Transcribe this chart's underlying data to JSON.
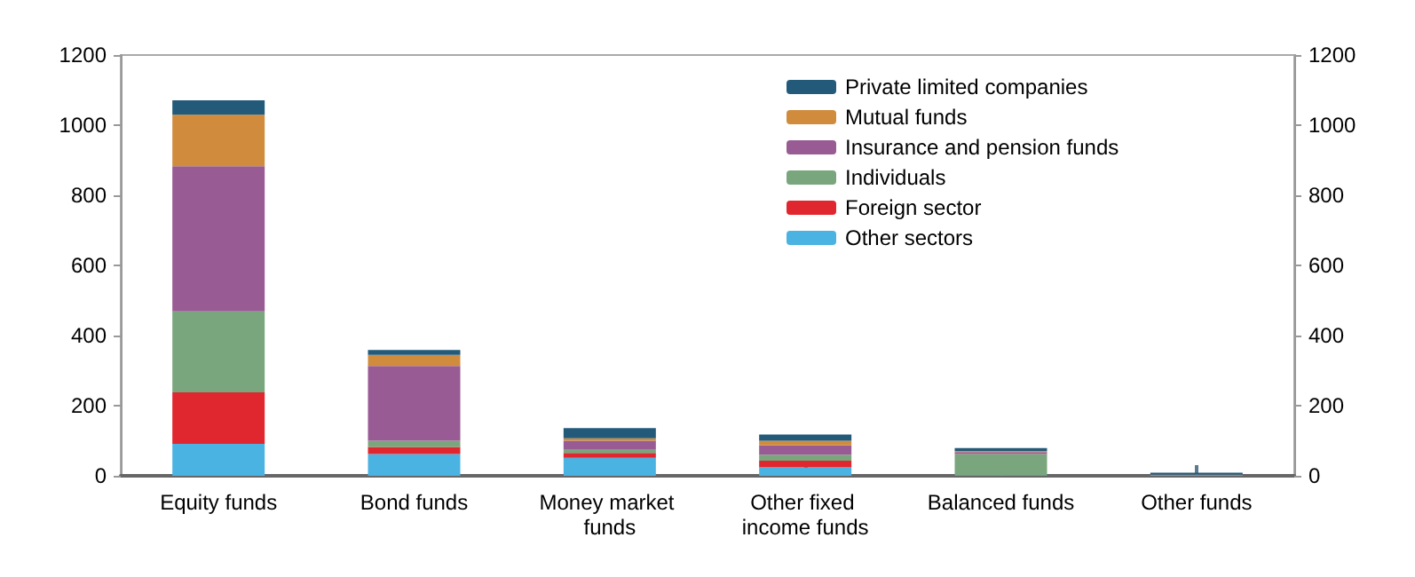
{
  "chart_data": {
    "type": "bar",
    "stacked": true,
    "categories": [
      "Equity funds",
      "Bond funds",
      "Money market funds",
      "Other fixed income funds",
      "Balanced funds",
      "Other funds"
    ],
    "series": [
      {
        "name": "Other sectors",
        "color": "#4bb3e1",
        "values": [
          91,
          62,
          51,
          24,
          2,
          2
        ]
      },
      {
        "name": "Foreign sector",
        "color": "#e0262e",
        "values": [
          147,
          20,
          14,
          19,
          0,
          0
        ]
      },
      {
        "name": "Individuals",
        "color": "#79a67c",
        "values": [
          231,
          18,
          11,
          17,
          60,
          1
        ]
      },
      {
        "name": "Insurance and pension funds",
        "color": "#985b94",
        "values": [
          414,
          213,
          24,
          27,
          6,
          1
        ]
      },
      {
        "name": "Mutual funds",
        "color": "#d08c3c",
        "values": [
          147,
          32,
          7,
          13,
          3,
          0
        ]
      },
      {
        "name": "Private limited companies",
        "color": "#235a7a",
        "values": [
          41,
          14,
          29,
          18,
          8,
          5
        ]
      }
    ],
    "ylim": [
      0,
      1200
    ],
    "yticks": [
      0,
      200,
      400,
      600,
      800,
      1000,
      1200
    ],
    "y2lim": [
      0,
      1200
    ],
    "y2ticks": [
      0,
      200,
      400,
      600,
      800,
      1000,
      1200
    ],
    "grid": false,
    "legend": "top right"
  }
}
